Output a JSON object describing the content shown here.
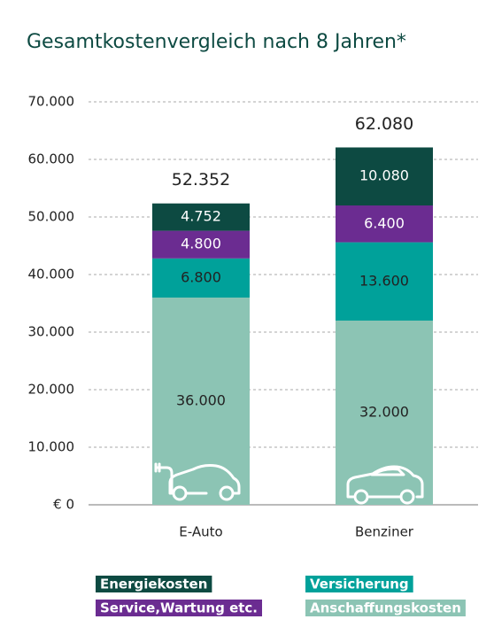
{
  "chart_data": {
    "type": "stacked_bar",
    "title": "Gesamtkostenvergleich nach 8 Jahren*",
    "categories": [
      "E-Auto",
      "Benziner"
    ],
    "series": [
      {
        "name": "Anschaffungskosten",
        "color": "#8cc4b4",
        "values": [
          36000,
          32000
        ],
        "value_labels": [
          "36.000",
          "32.000"
        ]
      },
      {
        "name": "Versicherung",
        "color": "#00a19a",
        "values": [
          6800,
          13600
        ],
        "value_labels": [
          "6.800",
          "13.600"
        ]
      },
      {
        "name": "Service,Wartung etc.",
        "color": "#6b2c91",
        "values": [
          4800,
          6400
        ],
        "value_labels": [
          "4.800",
          "6.400"
        ]
      },
      {
        "name": "Energiekosten",
        "color": "#0d4a42",
        "values": [
          4752,
          10080
        ],
        "value_labels": [
          "4.752",
          "10.080"
        ]
      }
    ],
    "totals": {
      "values": [
        52352,
        62080
      ],
      "value_labels": [
        "52.352",
        "62.080"
      ]
    },
    "ylim": [
      0,
      70000
    ],
    "yticks": [
      {
        "value": 0,
        "label": "€ 0"
      },
      {
        "value": 10000,
        "label": "10.000"
      },
      {
        "value": 20000,
        "label": "20.000"
      },
      {
        "value": 30000,
        "label": "30.000"
      },
      {
        "value": 40000,
        "label": "40.000"
      },
      {
        "value": 50000,
        "label": "50.000"
      },
      {
        "value": 60000,
        "label": "60.000"
      },
      {
        "value": 70000,
        "label": "70.000"
      }
    ],
    "grid": true
  }
}
